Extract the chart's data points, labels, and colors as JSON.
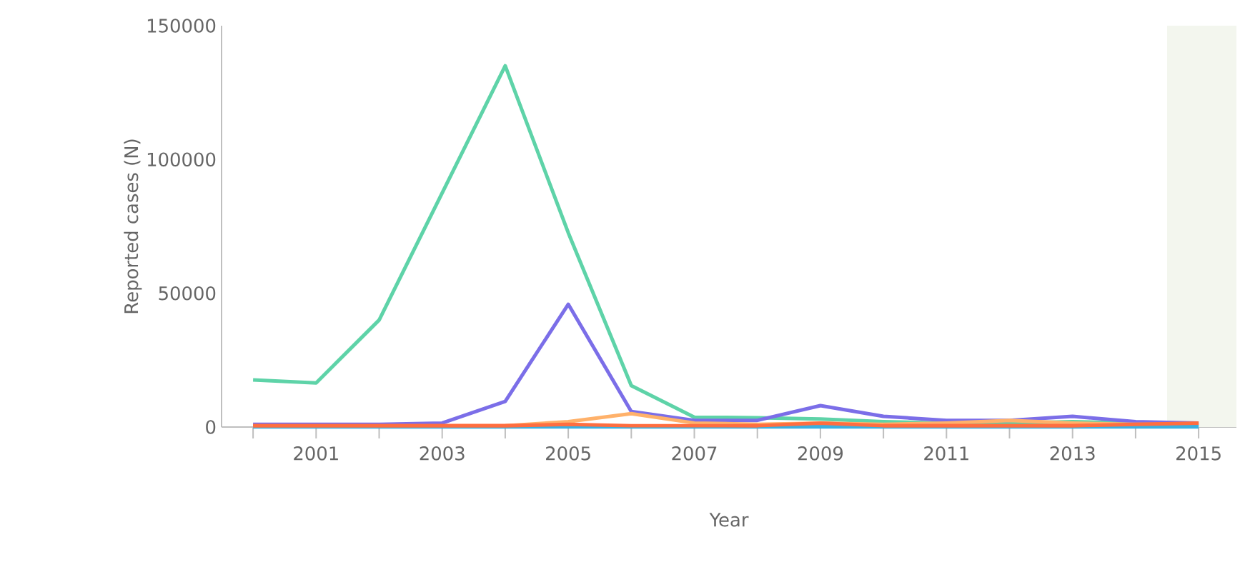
{
  "chart_data": {
    "type": "line",
    "xlabel": "Year",
    "ylabel": "Reported cases (N)",
    "x": [
      2000,
      2001,
      2002,
      2003,
      2004,
      2005,
      2006,
      2007,
      2008,
      2009,
      2010,
      2011,
      2012,
      2013,
      2014,
      2015
    ],
    "series": [
      {
        "color": "#5ed3a8",
        "values": [
          17600,
          16500,
          40000,
          87500,
          135000,
          72600,
          15500,
          3700,
          3500,
          3000,
          2000,
          1500,
          1500,
          2000,
          1500,
          1000
        ]
      },
      {
        "color": "#7b6ee8",
        "values": [
          1000,
          1000,
          1000,
          1500,
          9600,
          45900,
          5800,
          2500,
          2500,
          8000,
          4000,
          2500,
          2500,
          4000,
          2000,
          1500
        ]
      },
      {
        "color": "#ffb16a",
        "values": [
          null,
          null,
          null,
          null,
          500,
          2000,
          5000,
          1500,
          1000,
          1500,
          1000,
          1500,
          2500,
          1500,
          1000,
          1000
        ]
      },
      {
        "color": "#3ab0e0",
        "values": [
          100,
          100,
          100,
          100,
          100,
          100,
          100,
          100,
          100,
          100,
          100,
          100,
          100,
          100,
          100,
          100
        ]
      },
      {
        "color": "#ff6e40",
        "values": [
          500,
          500,
          500,
          500,
          500,
          1000,
          500,
          500,
          500,
          1500,
          500,
          500,
          500,
          500,
          1000,
          1500
        ]
      }
    ],
    "xlim": [
      1999.5,
      2015.6
    ],
    "ylim": [
      0,
      150000
    ],
    "xticks": [
      {
        "value": 2000,
        "label": null
      },
      2001,
      {
        "value": 2002,
        "label": null
      },
      2003,
      {
        "value": 2004,
        "label": null
      },
      2005,
      {
        "value": 2006,
        "label": null
      },
      2007,
      {
        "value": 2008,
        "label": null
      },
      2009,
      {
        "value": 2010,
        "label": null
      },
      2011,
      {
        "value": 2012,
        "label": null
      },
      2013,
      {
        "value": 2014,
        "label": null
      },
      2015
    ],
    "yticks": [
      0,
      50000,
      100000,
      150000
    ],
    "bands": [
      {
        "axis": "x",
        "from": 2014.5,
        "to": 2015.6,
        "color": "#f3f6ee"
      }
    ],
    "grid": false,
    "marker": "none",
    "line_style": "solid"
  }
}
